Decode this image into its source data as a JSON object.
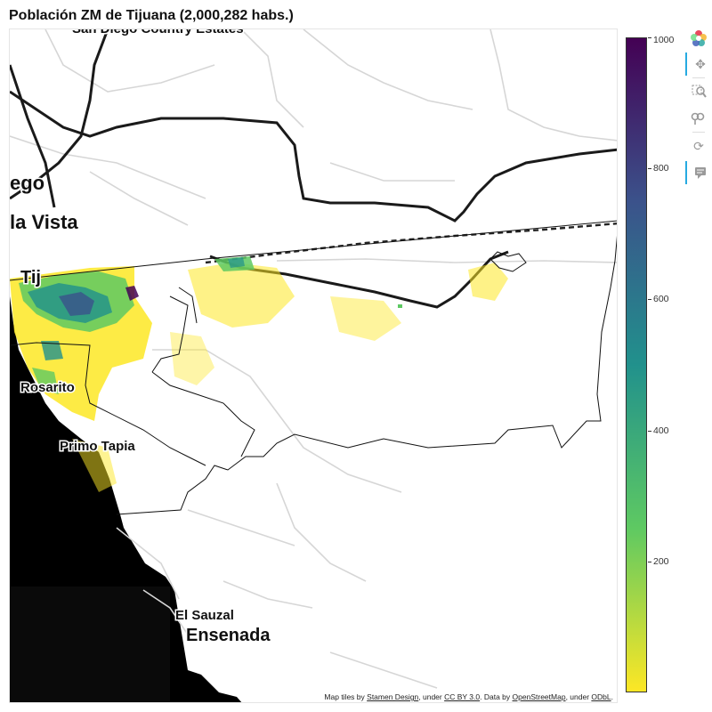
{
  "title": "Población ZM de Tijuana (2,000,282 habs.)",
  "map": {
    "place_labels": [
      "San Diego Country Estates",
      "ego",
      "la Vista",
      "Tij",
      "Rosarito",
      "Primo Tapia",
      "El Sauzal",
      "Ensenada"
    ],
    "attribution": {
      "prefix": "Map tiles by",
      "link1": "Stamen Design",
      "mid1": ", under",
      "link2": "CC BY 3.0",
      "mid2": ". Data by",
      "link3": "OpenStreetMap",
      "mid3": ", under",
      "link4": "ODbL",
      "suffix": "."
    }
  },
  "colorbar": {
    "palette": "viridis (reversed)",
    "min": 0,
    "max": 1000,
    "ticks": [
      "1000",
      "800",
      "600",
      "400",
      "200"
    ],
    "colors": [
      "#440154",
      "#3b528b",
      "#21918c",
      "#5ec962",
      "#fde725"
    ]
  },
  "toolbar": {
    "items": [
      "bokeh-logo-icon",
      "pan-icon",
      "box-zoom-icon",
      "wheel-zoom-icon",
      "reset-icon",
      "hover-icon"
    ],
    "active": [
      "pan-icon",
      "hover-icon"
    ]
  }
}
